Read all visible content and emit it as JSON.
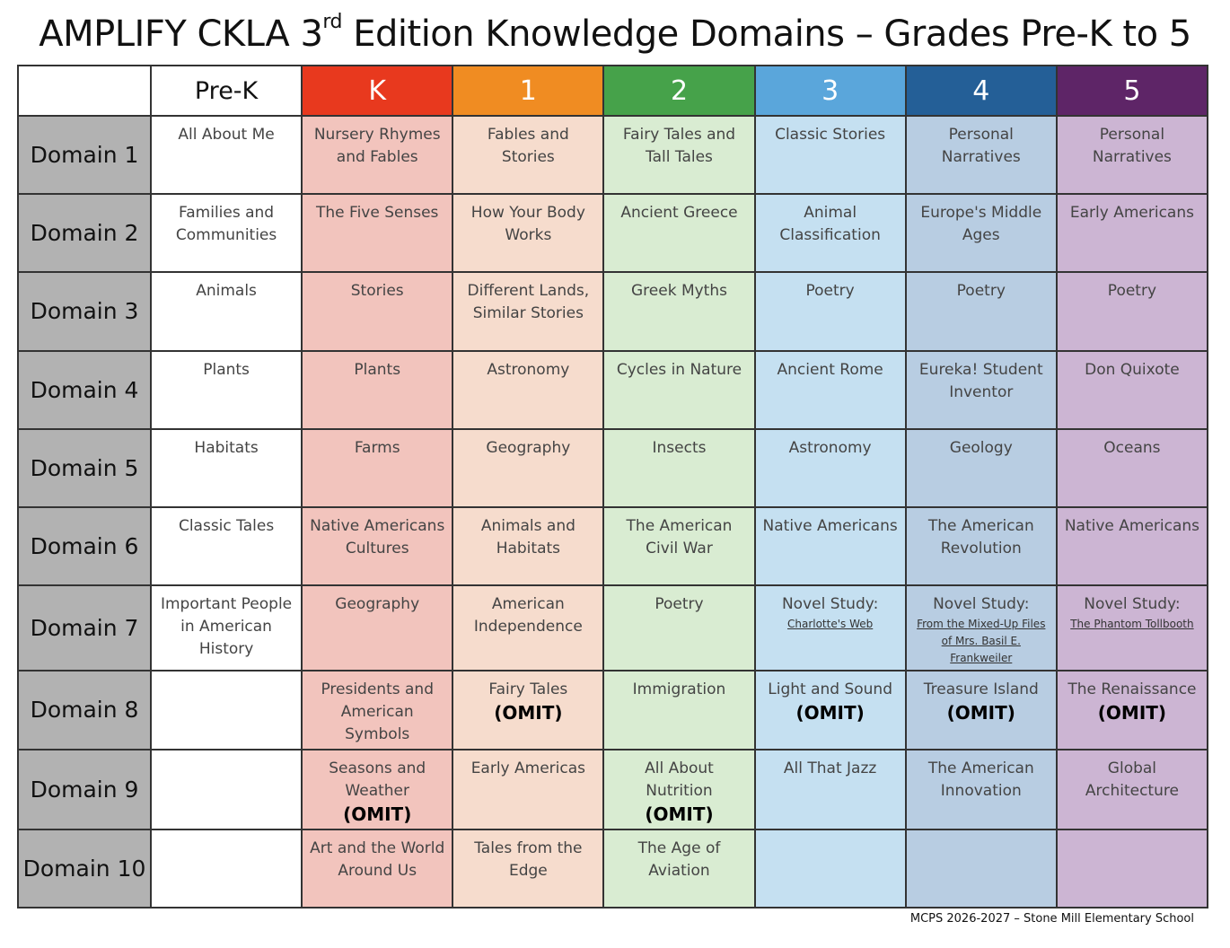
{
  "title": {
    "pre": "AMPLIFY CKLA 3",
    "sup": "rd",
    "post": " Edition Knowledge Domains – Grades Pre-K to 5"
  },
  "grades": [
    {
      "label": "Pre-K",
      "header_color": "#ffffff",
      "cell_color": "#ffffff"
    },
    {
      "label": "K",
      "header_color": "#e8391e",
      "cell_color": "#f2c4bd"
    },
    {
      "label": "1",
      "header_color": "#f08c22",
      "cell_color": "#f6dccd"
    },
    {
      "label": "2",
      "header_color": "#46a24a",
      "cell_color": "#d9ecd2"
    },
    {
      "label": "3",
      "header_color": "#5aa6db",
      "cell_color": "#c5e0f1"
    },
    {
      "label": "4",
      "header_color": "#245f97",
      "cell_color": "#b8cde2"
    },
    {
      "label": "5",
      "header_color": "#5e2567",
      "cell_color": "#ccb5d3"
    }
  ],
  "rows": [
    {
      "label": "Domain 1",
      "cells": [
        {
          "text": "All About Me"
        },
        {
          "text": "Nursery Rhymes and Fables"
        },
        {
          "text": "Fables and Stories"
        },
        {
          "text": "Fairy Tales and Tall Tales"
        },
        {
          "text": "Classic Stories"
        },
        {
          "text": "Personal Narratives"
        },
        {
          "text": "Personal Narratives"
        }
      ]
    },
    {
      "label": "Domain 2",
      "cells": [
        {
          "text": "Families and Communities"
        },
        {
          "text": "The Five Senses"
        },
        {
          "text": "How Your Body Works"
        },
        {
          "text": "Ancient Greece"
        },
        {
          "text": "Animal Classification"
        },
        {
          "text": "Europe's Middle Ages"
        },
        {
          "text": "Early Americans"
        }
      ]
    },
    {
      "label": "Domain 3",
      "cells": [
        {
          "text": "Animals"
        },
        {
          "text": "Stories"
        },
        {
          "text": "Different Lands, Similar Stories"
        },
        {
          "text": "Greek Myths"
        },
        {
          "text": "Poetry"
        },
        {
          "text": "Poetry"
        },
        {
          "text": "Poetry"
        }
      ]
    },
    {
      "label": "Domain 4",
      "cells": [
        {
          "text": "Plants"
        },
        {
          "text": "Plants"
        },
        {
          "text": "Astronomy"
        },
        {
          "text": "Cycles in Nature"
        },
        {
          "text": "Ancient Rome"
        },
        {
          "text": "Eureka! Student Inventor"
        },
        {
          "text": "Don Quixote"
        }
      ]
    },
    {
      "label": "Domain 5",
      "cells": [
        {
          "text": "Habitats"
        },
        {
          "text": "Farms"
        },
        {
          "text": "Geography"
        },
        {
          "text": "Insects"
        },
        {
          "text": "Astronomy"
        },
        {
          "text": "Geology"
        },
        {
          "text": "Oceans"
        }
      ]
    },
    {
      "label": "Domain 6",
      "cells": [
        {
          "text": "Classic Tales"
        },
        {
          "text": "Native Americans Cultures"
        },
        {
          "text": "Animals and Habitats"
        },
        {
          "text": "The American Civil War"
        },
        {
          "text": "Native Americans"
        },
        {
          "text": "The American Revolution"
        },
        {
          "text": "Native Americans"
        }
      ]
    },
    {
      "label": "Domain 7",
      "cells": [
        {
          "text": "Important People in American History"
        },
        {
          "text": "Geography"
        },
        {
          "text": "American Independence"
        },
        {
          "text": "Poetry"
        },
        {
          "text": "Novel Study:",
          "novel": "Charlotte's Web"
        },
        {
          "text": "Novel Study:",
          "novel": "From the Mixed-Up Files of Mrs. Basil E. Frankweiler"
        },
        {
          "text": "Novel Study:",
          "novel": "The Phantom Tollbooth"
        }
      ]
    },
    {
      "label": "Domain 8",
      "cells": [
        {
          "text": ""
        },
        {
          "text": "Presidents and American Symbols"
        },
        {
          "text": "Fairy Tales",
          "omit": "(OMIT)"
        },
        {
          "text": "Immigration"
        },
        {
          "text": "Light and Sound",
          "omit": "(OMIT)"
        },
        {
          "text": "Treasure Island",
          "omit": "(OMIT)"
        },
        {
          "text": "The Renaissance",
          "omit": "(OMIT)"
        }
      ]
    },
    {
      "label": "Domain 9",
      "cells": [
        {
          "text": ""
        },
        {
          "text": "Seasons and Weather",
          "omit": "(OMIT)"
        },
        {
          "text": "Early Americas"
        },
        {
          "text": "All About Nutrition",
          "omit": "(OMIT)"
        },
        {
          "text": "All That Jazz"
        },
        {
          "text": "The American Innovation"
        },
        {
          "text": "Global Architecture"
        }
      ]
    },
    {
      "label": "Domain 10",
      "cells": [
        {
          "text": ""
        },
        {
          "text": "Art and the World Around Us"
        },
        {
          "text": "Tales from the Edge"
        },
        {
          "text": "The Age of Aviation"
        },
        {
          "text": ""
        },
        {
          "text": ""
        },
        {
          "text": ""
        }
      ]
    }
  ],
  "footer": "MCPS 2026-2027 – Stone Mill Elementary School"
}
